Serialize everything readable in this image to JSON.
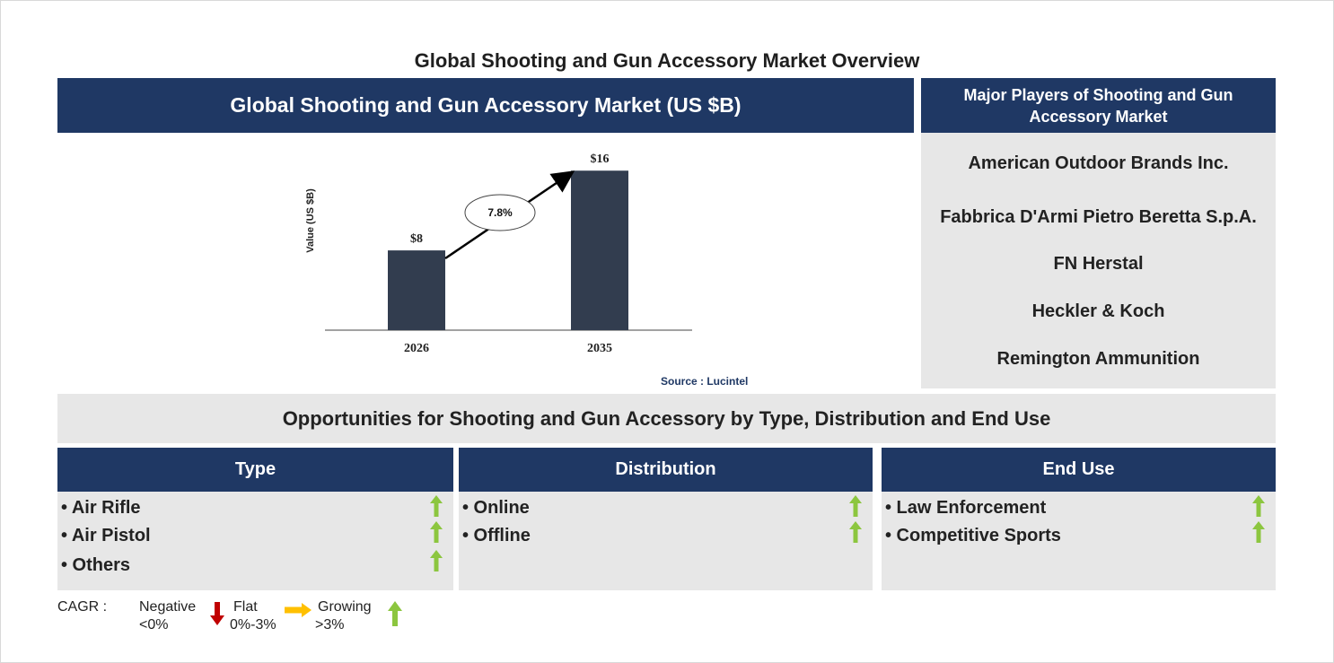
{
  "page_title": "Global Shooting and Gun Accessory Market Overview",
  "chart_panel": {
    "title": "Global Shooting and Gun Accessory Market (US $B)",
    "source": "Source : Lucintel"
  },
  "chart_data": {
    "type": "bar",
    "categories": [
      "2026",
      "2035"
    ],
    "values": [
      8,
      16
    ],
    "value_labels": [
      "$8",
      "$16"
    ],
    "ylabel": "Value (US $B)",
    "xlabel": "",
    "title": "",
    "ylim": [
      0,
      18
    ],
    "grid": false,
    "bar_color": "#323d4f",
    "cagr_label": "7.8%"
  },
  "players": {
    "title": "Major Players of Shooting and Gun Accessory Market",
    "items": [
      "American Outdoor Brands Inc.",
      "Fabbrica D'Armi Pietro Beretta S.p.A.",
      "FN Herstal",
      "Heckler & Koch",
      "Remington Ammunition"
    ]
  },
  "opportunities": {
    "title": "Opportunities for Shooting and Gun Accessory by Type, Distribution and End Use",
    "segments": [
      {
        "name": "Type",
        "items": [
          "• Air Rifle",
          "• Air Pistol",
          "• Others"
        ]
      },
      {
        "name": "Distribution",
        "items": [
          "• Online",
          "• Offline"
        ]
      },
      {
        "name": "End Use",
        "items": [
          "• Law Enforcement",
          "• Competitive Sports"
        ]
      }
    ]
  },
  "legend": {
    "cagr_label": "CAGR :",
    "negative": "Negative",
    "negative_range": "<0%",
    "flat": "Flat",
    "flat_range": "0%-3%",
    "growing": "Growing",
    "growing_range": ">3%"
  },
  "colors": {
    "navy": "#1f3864",
    "panel_grey": "#e7e7e7",
    "growth_green": "#8cc63f",
    "flat_orange": "#ffc000",
    "negative_red": "#c00000"
  }
}
